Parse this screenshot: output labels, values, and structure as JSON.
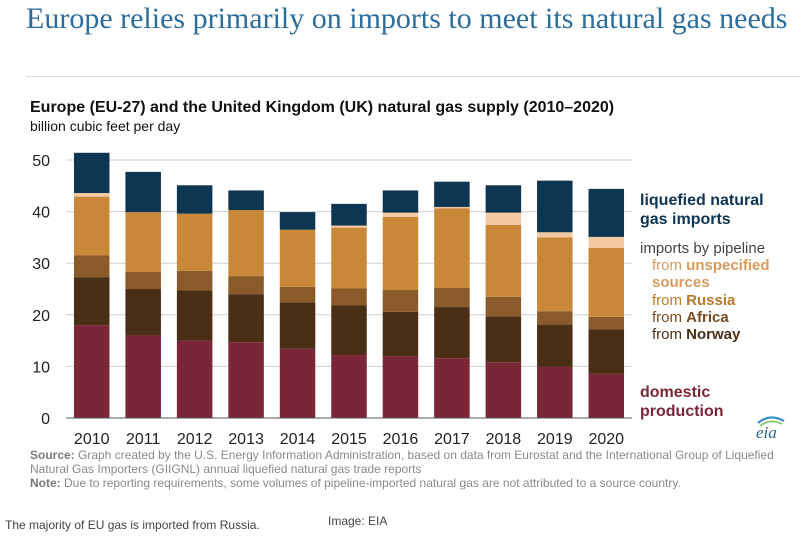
{
  "headline": "Europe relies primarily on imports to meet its natural gas needs",
  "source_label": "Source:",
  "source_text": "Graph created by the U.S. Energy Information Administration, based on data from Eurostat and the International Group of Liquefied Natural Gas Importers (GIIGNL) annual liquefied natural gas trade reports",
  "note_label": "Note:",
  "note_text": "Due to reporting requirements, some volumes of pipeline-imported natural gas are not attributed to a source country.",
  "caption": "The majority of EU gas is imported from Russia.",
  "credit": "Image: EIA",
  "logo_text": "eia",
  "legend": {
    "lng": [
      "liquefied natural",
      "gas imports"
    ],
    "pipeline_header": "imports by pipeline",
    "unspecified": [
      "from ",
      "unspecified",
      "sources"
    ],
    "russia": [
      "from ",
      "Russia"
    ],
    "africa": [
      "from ",
      "Africa"
    ],
    "norway": [
      "from ",
      "Norway"
    ],
    "domestic": [
      "domestic",
      "production"
    ]
  },
  "chart_data": {
    "type": "bar",
    "stacked": true,
    "title": "Europe (EU-27) and the United Kingdom (UK) natural gas supply (2010–2020)",
    "subtitle": "billion cubic feet per day",
    "ylim": [
      0,
      50
    ],
    "yticks": [
      0,
      10,
      20,
      30,
      40,
      50
    ],
    "grid": true,
    "legend_position": "right",
    "categories": [
      "2010",
      "2011",
      "2012",
      "2013",
      "2014",
      "2015",
      "2016",
      "2017",
      "2018",
      "2019",
      "2020"
    ],
    "series": [
      {
        "name": "domestic production",
        "color": "#7b2636",
        "values": [
          18.0,
          16.0,
          15.0,
          14.7,
          13.4,
          12.2,
          12.0,
          11.6,
          10.8,
          9.9,
          8.6
        ]
      },
      {
        "name": "from Norway",
        "color": "#4a2e15",
        "values": [
          9.3,
          9.0,
          9.7,
          9.3,
          9.0,
          9.6,
          8.6,
          9.9,
          8.9,
          8.2,
          8.6
        ]
      },
      {
        "name": "from Africa",
        "color": "#8b5a2b",
        "values": [
          4.2,
          3.3,
          3.8,
          3.5,
          3.0,
          3.3,
          4.2,
          3.7,
          3.8,
          2.6,
          2.4
        ]
      },
      {
        "name": "from Russia",
        "color": "#c98838",
        "values": [
          11.4,
          11.6,
          11.1,
          12.8,
          11.1,
          11.8,
          14.2,
          15.4,
          13.9,
          14.3,
          13.4
        ]
      },
      {
        "name": "from unspecified sources",
        "color": "#f2c9a1",
        "values": [
          0.7,
          0.0,
          0.0,
          0.0,
          0.0,
          0.4,
          0.8,
          0.3,
          2.4,
          1.0,
          2.1
        ]
      },
      {
        "name": "liquefied natural gas imports",
        "color": "#0e3552",
        "values": [
          7.8,
          7.8,
          5.5,
          3.8,
          3.4,
          4.2,
          4.3,
          4.9,
          5.3,
          10.0,
          9.3
        ]
      }
    ]
  }
}
